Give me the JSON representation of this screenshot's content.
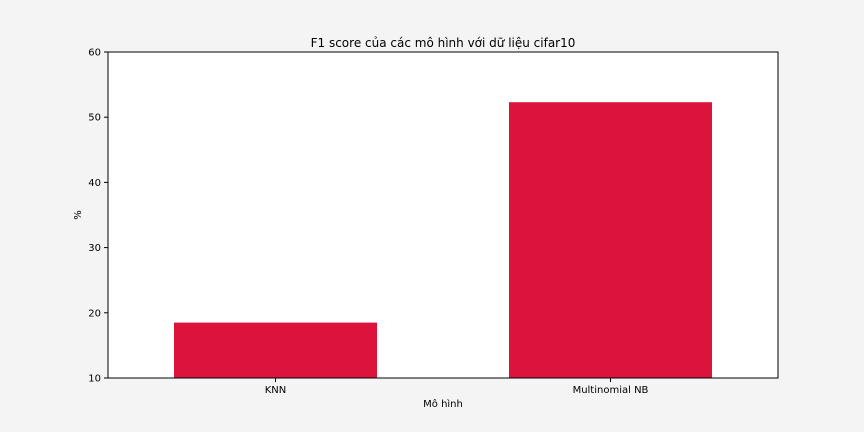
{
  "chart_data": {
    "type": "bar",
    "title": "F1 score của các mô hình với dữ liệu cifar10",
    "xlabel": "Mô hình",
    "ylabel": "%",
    "categories": [
      "KNN",
      "Multinomial NB"
    ],
    "values": [
      18.5,
      52.3
    ],
    "ylim": [
      10,
      60
    ],
    "yticks": [
      "10",
      "20",
      "30",
      "40",
      "50",
      "60"
    ],
    "bar_color": "#dc143c",
    "grid": false,
    "legend": false
  }
}
